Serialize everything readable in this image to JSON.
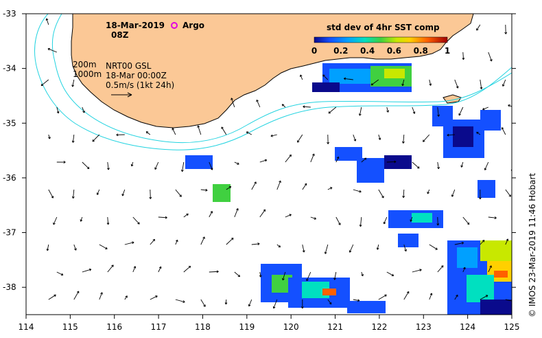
{
  "map": {
    "date": "18-Mar-2019",
    "hour": "08Z",
    "argo_label": "Argo",
    "depth_200": "200m",
    "depth_1000": "1000m",
    "product": "NRT00 GSL",
    "product_time": "18-Mar 00:00Z",
    "scale_note": "0.5m/s (1kt 24h)",
    "credit": "© IMOS 23-Mar-2019 11:46 Hobart",
    "colorbar": {
      "title": "std dev of 4hr SST comp",
      "ticks": [
        "0",
        "0.2",
        "0.4",
        "0.6",
        "0.8",
        "1"
      ],
      "min": 0,
      "max": 1
    },
    "lon_ticks": [
      "114",
      "115",
      "116",
      "117",
      "118",
      "119",
      "120",
      "121",
      "122",
      "123",
      "124",
      "125"
    ],
    "lat_ticks": [
      "-33",
      "-34",
      "-35",
      "-36",
      "-37",
      "-38"
    ],
    "lon_range": [
      114,
      125
    ],
    "lat_range": [
      -38.5,
      -33
    ],
    "colors": {
      "land": "#fbc896",
      "isobath": "#22d3e0",
      "argo": "#e000e0",
      "arrow": "#000000"
    }
  }
}
